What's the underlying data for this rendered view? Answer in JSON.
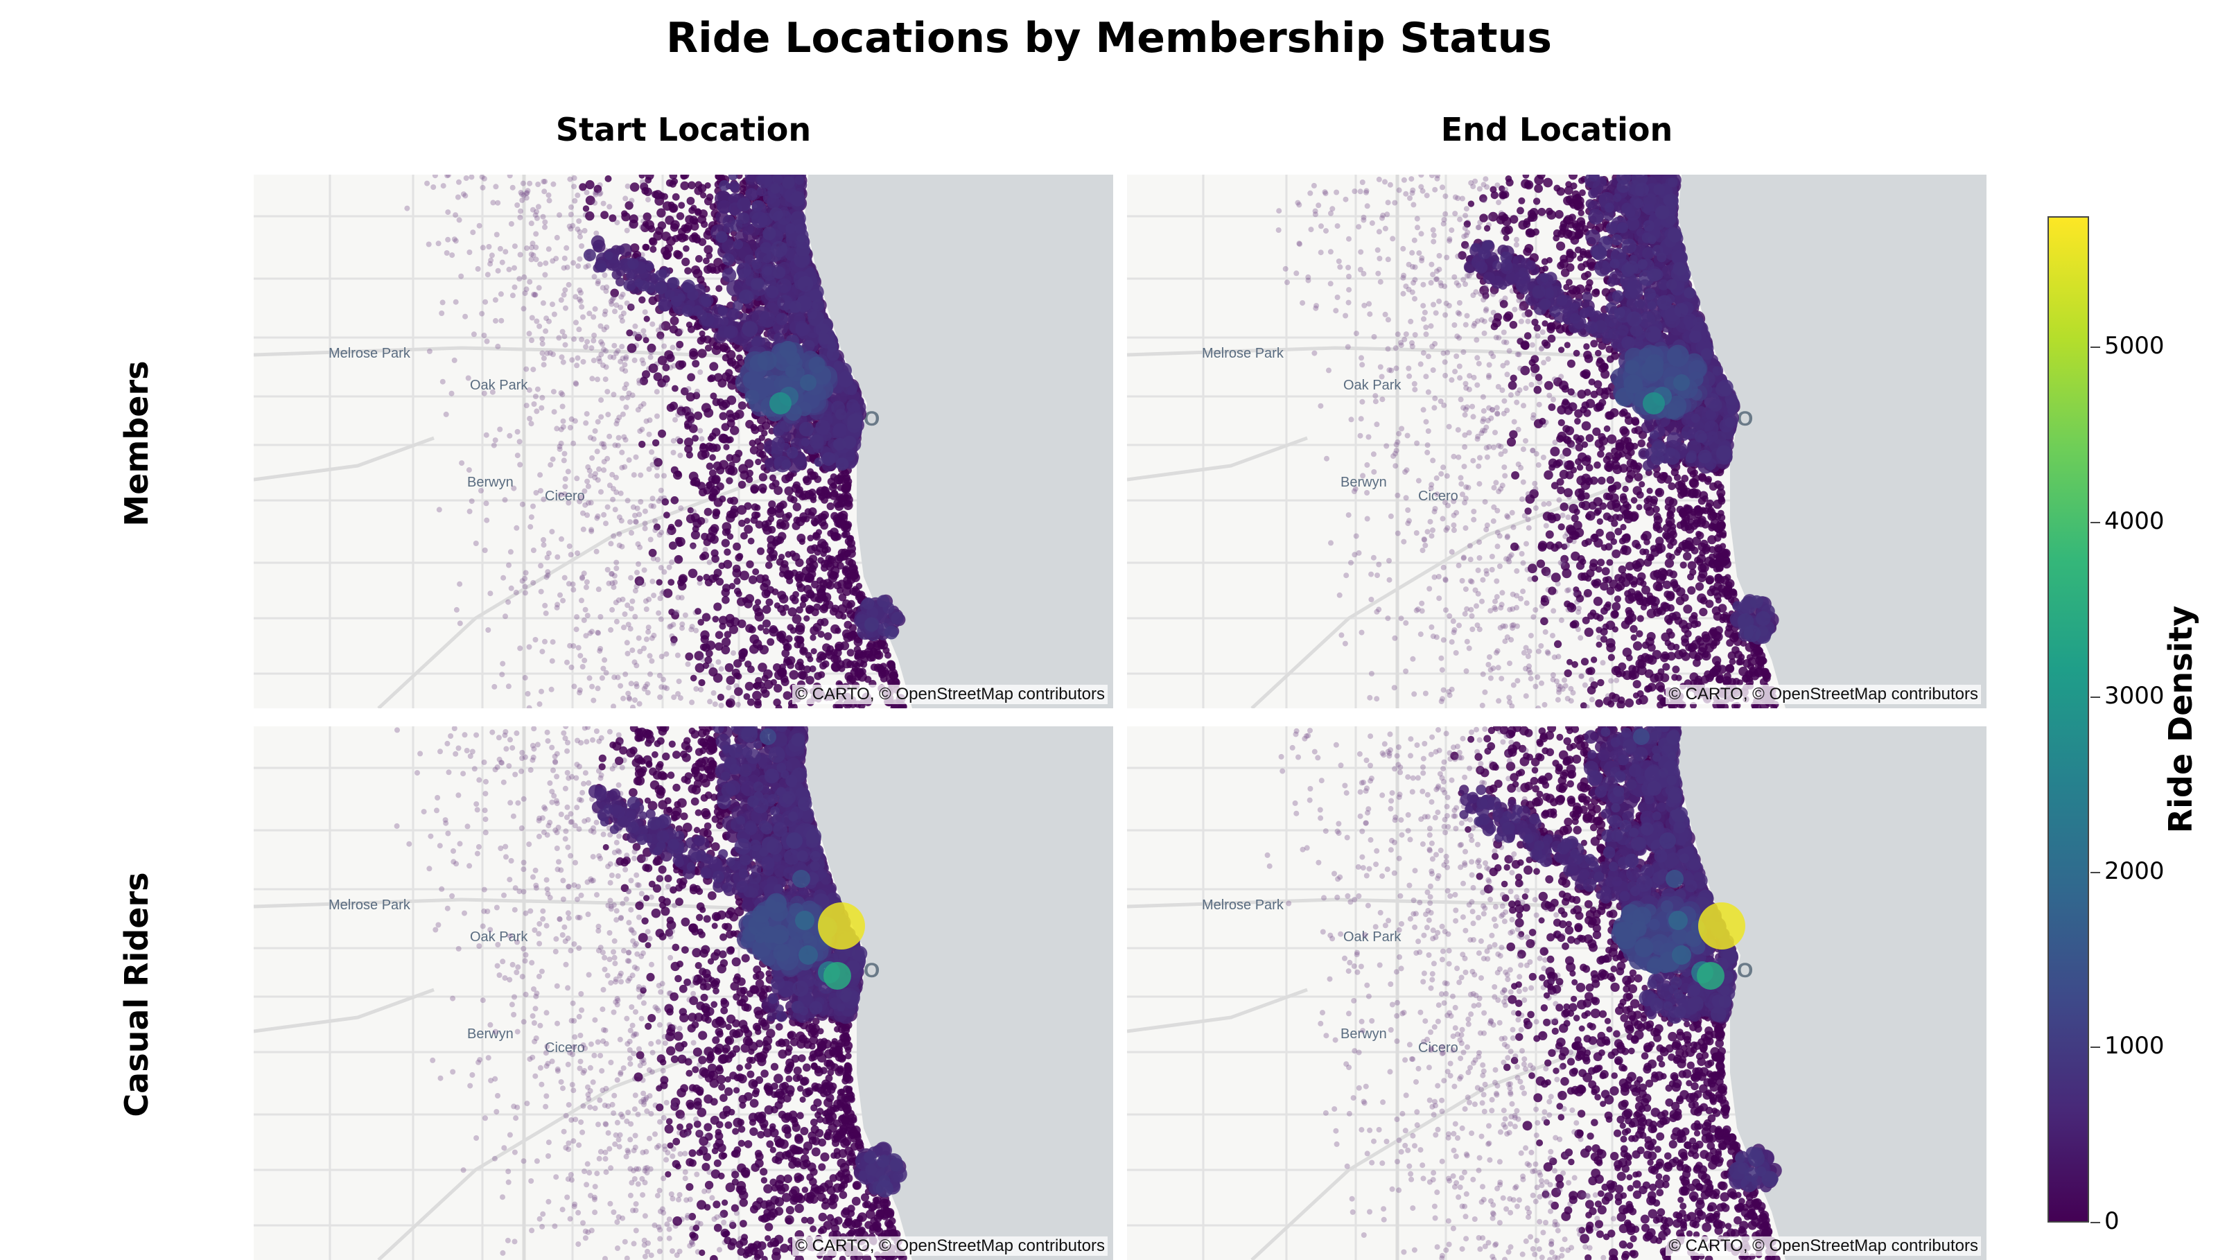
{
  "title": "Ride Locations by Membership Status",
  "columns": [
    "Start Location",
    "End Location"
  ],
  "rows": [
    "Members",
    "Casual Riders"
  ],
  "map": {
    "labels": [
      "Melrose Park",
      "Oak Park",
      "Berwyn",
      "Cicero",
      "AGO"
    ],
    "attribution": "© CARTO, © OpenStreetMap contributors",
    "water_color": "#d4d8db",
    "land_color": "#f7f7f5"
  },
  "colorbar": {
    "title": "Ride Density",
    "min": 0,
    "max": 5750,
    "ticks": [
      "0",
      "1000",
      "2000",
      "3000",
      "4000",
      "5000"
    ],
    "tick_values": [
      0,
      1000,
      2000,
      3000,
      4000,
      5000
    ],
    "colorscale": "Viridis"
  }
}
